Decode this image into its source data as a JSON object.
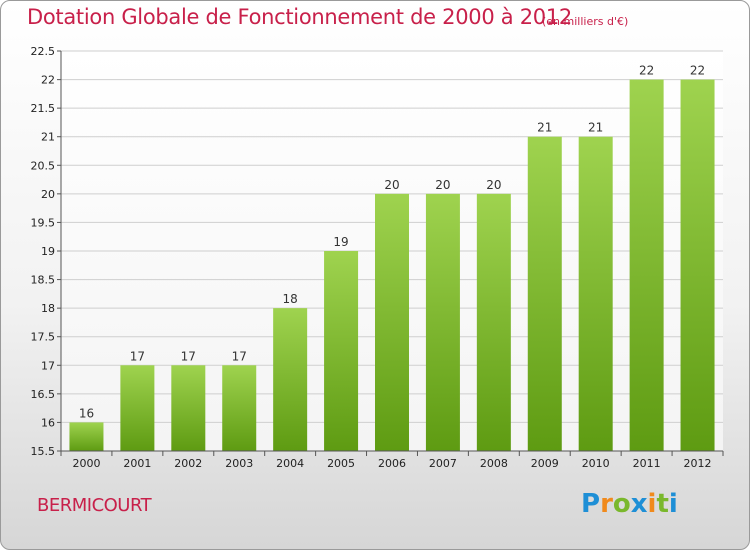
{
  "header": {
    "title": "Dotation Globale de Fonctionnement de 2000 à 2012",
    "unit": "(en milliers d'€)"
  },
  "footer": {
    "commune": "BERMICOURT",
    "brand": {
      "letters": [
        "P",
        "r",
        "o",
        "x",
        "i",
        "t",
        "i"
      ],
      "colors": [
        "#1e8fd6",
        "#f08a1c",
        "#7ab82c",
        "#1e8fd6",
        "#f08a1c",
        "#7ab82c",
        "#1e8fd6"
      ]
    }
  },
  "colors": {
    "bar_top": "#9fd34f",
    "bar_bottom": "#5e9b12",
    "grid": "#cfcfcf",
    "title": "#c8204a"
  },
  "chart_data": {
    "type": "bar",
    "title": "Dotation Globale de Fonctionnement de 2000 à 2012",
    "subtitle": "(en milliers d'€)",
    "xlabel": "",
    "ylabel": "",
    "categories": [
      "2000",
      "2001",
      "2002",
      "2003",
      "2004",
      "2005",
      "2006",
      "2007",
      "2008",
      "2009",
      "2010",
      "2011",
      "2012"
    ],
    "values": [
      16,
      17,
      17,
      17,
      18,
      19,
      20,
      20,
      20,
      21,
      21,
      22,
      22
    ],
    "value_labels": [
      "16",
      "17",
      "17",
      "17",
      "18",
      "19",
      "20",
      "20",
      "20",
      "21",
      "21",
      "22",
      "22"
    ],
    "ylim": [
      15.5,
      22.5
    ],
    "yticks": [
      15.5,
      16,
      16.5,
      17,
      17.5,
      18,
      18.5,
      19,
      19.5,
      20,
      20.5,
      21,
      21.5,
      22,
      22.5
    ],
    "ytick_labels": [
      "15.5",
      "16",
      "16.5",
      "17",
      "17.5",
      "18",
      "18.5",
      "19",
      "19.5",
      "20",
      "20.5",
      "21",
      "21.5",
      "22",
      "22.5"
    ],
    "grid": true,
    "legend": "none"
  }
}
